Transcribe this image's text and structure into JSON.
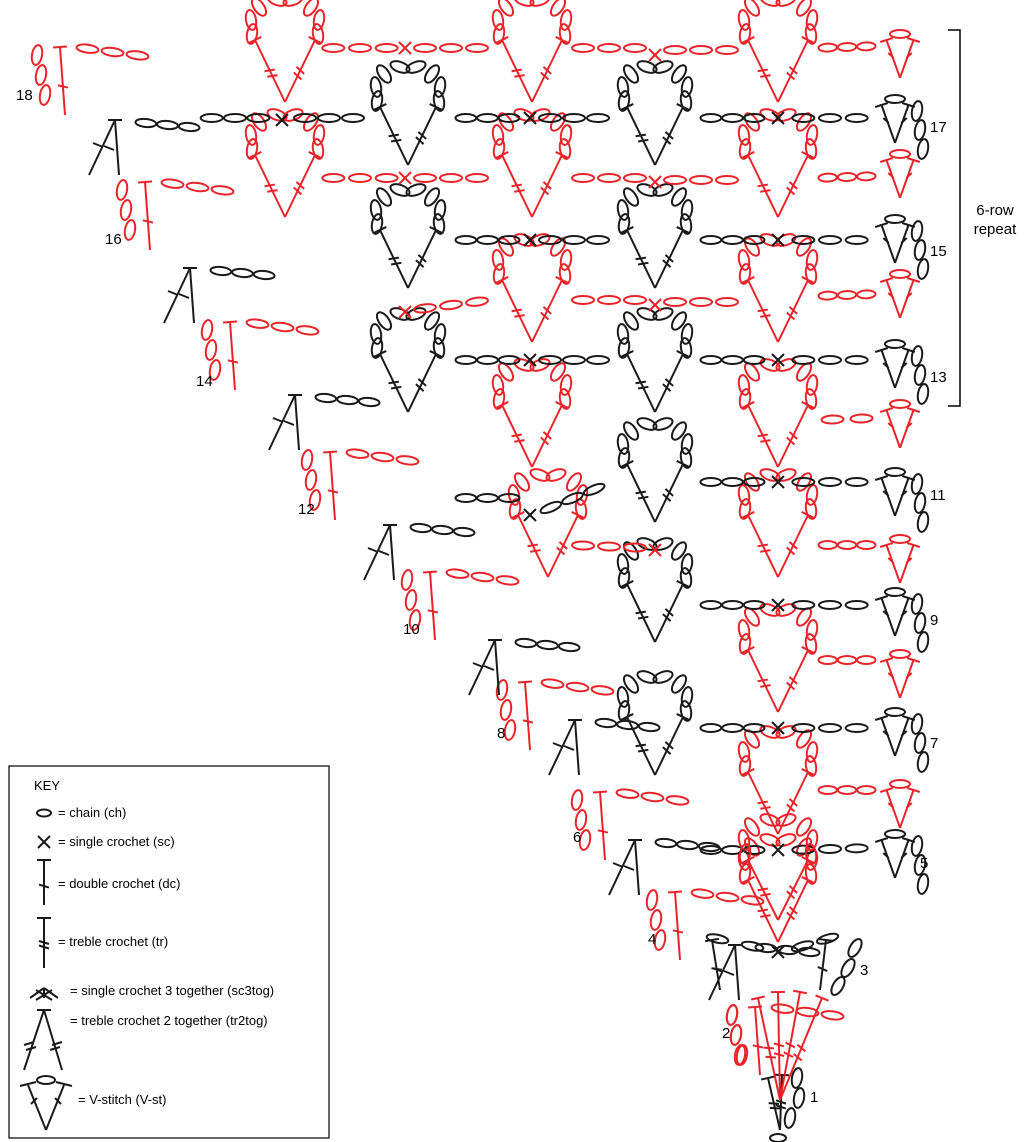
{
  "colors": {
    "red": "#e8242a",
    "black": "#1a1a1a"
  },
  "repeat": {
    "line1": "6-row",
    "line2": "repeat"
  },
  "rows": [
    {
      "n": "1",
      "color": "black"
    },
    {
      "n": "2",
      "color": "red"
    },
    {
      "n": "3",
      "color": "black"
    },
    {
      "n": "4",
      "color": "red"
    },
    {
      "n": "5",
      "color": "black"
    },
    {
      "n": "6",
      "color": "red"
    },
    {
      "n": "7",
      "color": "black"
    },
    {
      "n": "8",
      "color": "red"
    },
    {
      "n": "9",
      "color": "black"
    },
    {
      "n": "10",
      "color": "red"
    },
    {
      "n": "11",
      "color": "black"
    },
    {
      "n": "12",
      "color": "red"
    },
    {
      "n": "13",
      "color": "black"
    },
    {
      "n": "14",
      "color": "red"
    },
    {
      "n": "15",
      "color": "black"
    },
    {
      "n": "16",
      "color": "red"
    },
    {
      "n": "17",
      "color": "black"
    },
    {
      "n": "18",
      "color": "red"
    }
  ],
  "key": {
    "title": "KEY",
    "items": [
      {
        "symbol": "chain-icon",
        "label": "= chain (ch)"
      },
      {
        "symbol": "single-crochet-icon",
        "label": "= single crochet (sc)"
      },
      {
        "symbol": "double-crochet-icon",
        "label": "= double crochet (dc)"
      },
      {
        "symbol": "treble-crochet-icon",
        "label": "= treble crochet (tr)"
      },
      {
        "symbol": "sc3tog-icon",
        "label": "= single crochet 3 together (sc3tog)"
      },
      {
        "symbol": "tr2tog-icon",
        "label": "= treble crochet 2 together (tr2tog)"
      },
      {
        "symbol": "v-stitch-icon",
        "label": "= V-stitch (V-st)"
      }
    ]
  }
}
